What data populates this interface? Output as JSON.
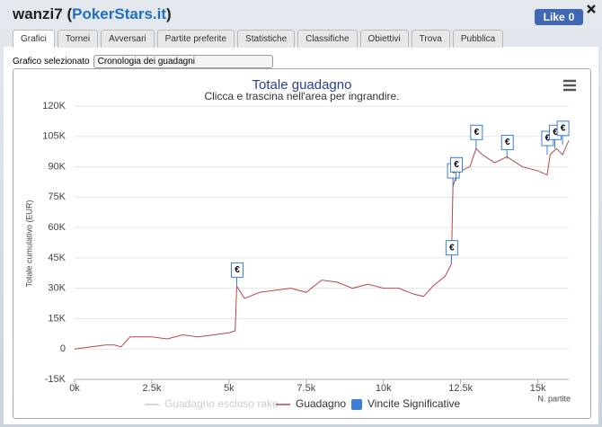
{
  "header": {
    "title_parts": [
      "wanzi7 (",
      "PokerStars.it",
      ")"
    ],
    "like_label": "Like",
    "like_count": 0
  },
  "tabs": [
    "Grafici",
    "Tornei",
    "Avversari",
    "Partite preferite",
    "Statistiche",
    "Classifiche",
    "Obiettivi",
    "Trova",
    "Pubblica"
  ],
  "selector": {
    "label": "Grafico selezionato",
    "value": "Cronologia dei guadagni"
  },
  "chart_data": {
    "type": "line",
    "title": "Totale guadagno",
    "subtitle": "Clicca e trascina nell'area per ingrandire.",
    "y_label": "Totale cumulativo (EUR)",
    "x_label": "N. partite",
    "xlim": [
      0,
      16000
    ],
    "ylim": [
      -15000,
      120000
    ],
    "xticks": [
      {
        "value": 0,
        "label": "0k"
      },
      {
        "value": 2500,
        "label": "2.5k"
      },
      {
        "value": 5000,
        "label": "5k"
      },
      {
        "value": 7500,
        "label": "7.5k"
      },
      {
        "value": 10000,
        "label": "10k"
      },
      {
        "value": 12500,
        "label": "12.5k"
      },
      {
        "value": 15000,
        "label": "15k"
      }
    ],
    "yticks": [
      {
        "value": -15000,
        "label": "-15K"
      },
      {
        "value": 0,
        "label": "0"
      },
      {
        "value": 15000,
        "label": "15K"
      },
      {
        "value": 30000,
        "label": "30K"
      },
      {
        "value": 45000,
        "label": "45K"
      },
      {
        "value": 60000,
        "label": "60K"
      },
      {
        "value": 75000,
        "label": "75K"
      },
      {
        "value": 90000,
        "label": "90K"
      },
      {
        "value": 105000,
        "label": "105K"
      },
      {
        "value": 120000,
        "label": "120K"
      }
    ],
    "grid": true,
    "series": [
      {
        "name": "Guadagno escluso rake",
        "color": "#cccccc",
        "visible": false
      },
      {
        "name": "Guadagno",
        "color": "#b5474a",
        "x": [
          0,
          500,
          1000,
          1300,
          1500,
          1800,
          2500,
          3000,
          3500,
          4000,
          4500,
          5000,
          5200,
          5250,
          5500,
          6000,
          6500,
          7000,
          7500,
          8000,
          8500,
          9000,
          9500,
          10000,
          10500,
          11000,
          11300,
          11600,
          12000,
          12200,
          12250,
          12300,
          12500,
          12800,
          13000,
          13200,
          13600,
          14000,
          14500,
          15000,
          15300,
          15400,
          15600,
          15800,
          16000
        ],
        "values": [
          0,
          1000,
          2000,
          2000,
          1000,
          6000,
          6000,
          5000,
          7000,
          6000,
          7000,
          8000,
          9000,
          31000,
          25000,
          28000,
          29000,
          30000,
          28000,
          34000,
          33000,
          30000,
          32000,
          30000,
          30000,
          27000,
          26000,
          31000,
          36000,
          42000,
          80000,
          83000,
          88000,
          90000,
          99000,
          96000,
          92000,
          95000,
          90000,
          88000,
          86000,
          96000,
          99000,
          96000,
          103000
        ]
      },
      {
        "name": "Vincite Significative",
        "type": "flags",
        "color": "#3a7fd5",
        "flag_label": "€",
        "x": [
          5250,
          12200,
          12250,
          12350,
          13000,
          14000,
          15300,
          15550,
          15800
        ],
        "values": [
          31000,
          42000,
          80000,
          83000,
          99000,
          94000,
          96000,
          99000,
          101000
        ]
      }
    ]
  }
}
